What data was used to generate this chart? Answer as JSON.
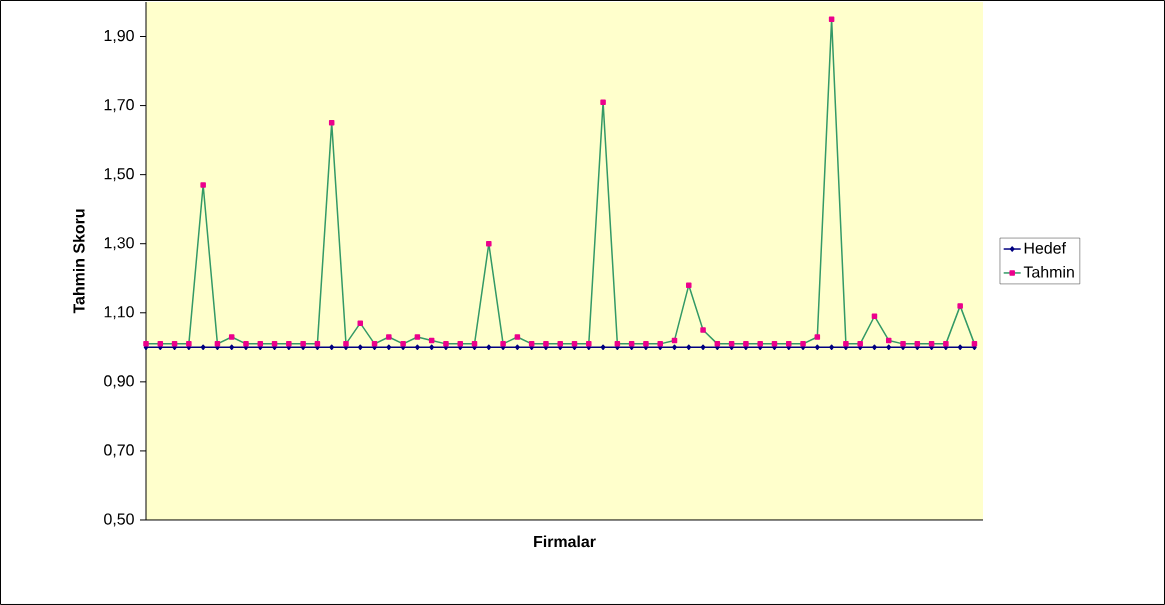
{
  "chart_data": {
    "type": "line",
    "xlabel": "Firmalar",
    "ylabel": "Tahmin Skoru",
    "categories": [
      null,
      null,
      null,
      null,
      null,
      null,
      null,
      null,
      null,
      null,
      null,
      null,
      null,
      null,
      null,
      null,
      null,
      null,
      null,
      null,
      null,
      null,
      null,
      null,
      null,
      null,
      null,
      null,
      null,
      null,
      null,
      null,
      null,
      null,
      null,
      null,
      null,
      null,
      null,
      null,
      null,
      null,
      null,
      null,
      null,
      null,
      null,
      null,
      null,
      null,
      null,
      null,
      null,
      null,
      null,
      null,
      null,
      null,
      null
    ],
    "series": [
      {
        "name": "Hedef",
        "color": "#000080",
        "marker": "diamond",
        "values": [
          1.0,
          1.0,
          1.0,
          1.0,
          1.0,
          1.0,
          1.0,
          1.0,
          1.0,
          1.0,
          1.0,
          1.0,
          1.0,
          1.0,
          1.0,
          1.0,
          1.0,
          1.0,
          1.0,
          1.0,
          1.0,
          1.0,
          1.0,
          1.0,
          1.0,
          1.0,
          1.0,
          1.0,
          1.0,
          1.0,
          1.0,
          1.0,
          1.0,
          1.0,
          1.0,
          1.0,
          1.0,
          1.0,
          1.0,
          1.0,
          1.0,
          1.0,
          1.0,
          1.0,
          1.0,
          1.0,
          1.0,
          1.0,
          1.0,
          1.0,
          1.0,
          1.0,
          1.0,
          1.0,
          1.0,
          1.0,
          1.0,
          1.0,
          1.0
        ]
      },
      {
        "name": "Tahmin",
        "color": "#339966",
        "marker": "square",
        "values": [
          1.01,
          1.01,
          1.01,
          1.01,
          1.47,
          1.01,
          1.03,
          1.01,
          1.01,
          1.01,
          1.01,
          1.01,
          1.01,
          1.65,
          1.01,
          1.07,
          1.01,
          1.03,
          1.01,
          1.03,
          1.02,
          1.01,
          1.01,
          1.01,
          1.3,
          1.01,
          1.03,
          1.01,
          1.01,
          1.01,
          1.01,
          1.01,
          1.71,
          1.01,
          1.01,
          1.01,
          1.01,
          1.02,
          1.18,
          1.05,
          1.01,
          1.01,
          1.01,
          1.01,
          1.01,
          1.01,
          1.01,
          1.03,
          1.95,
          1.01,
          1.01,
          1.09,
          1.02,
          1.01,
          1.01,
          1.01,
          1.01,
          1.12,
          1.01
        ]
      }
    ],
    "ylim": [
      0.5,
      2.0
    ],
    "yticks": [
      {
        "value": 0.5,
        "label": "0,50"
      },
      {
        "value": 0.7,
        "label": "0,70"
      },
      {
        "value": 0.9,
        "label": "0,90"
      },
      {
        "value": 1.1,
        "label": "1,10"
      },
      {
        "value": 1.3,
        "label": "1,30"
      },
      {
        "value": 1.5,
        "label": "1,50"
      },
      {
        "value": 1.7,
        "label": "1,70"
      },
      {
        "value": 1.9,
        "label": "1,90"
      }
    ],
    "grid": false,
    "legend": "right"
  }
}
